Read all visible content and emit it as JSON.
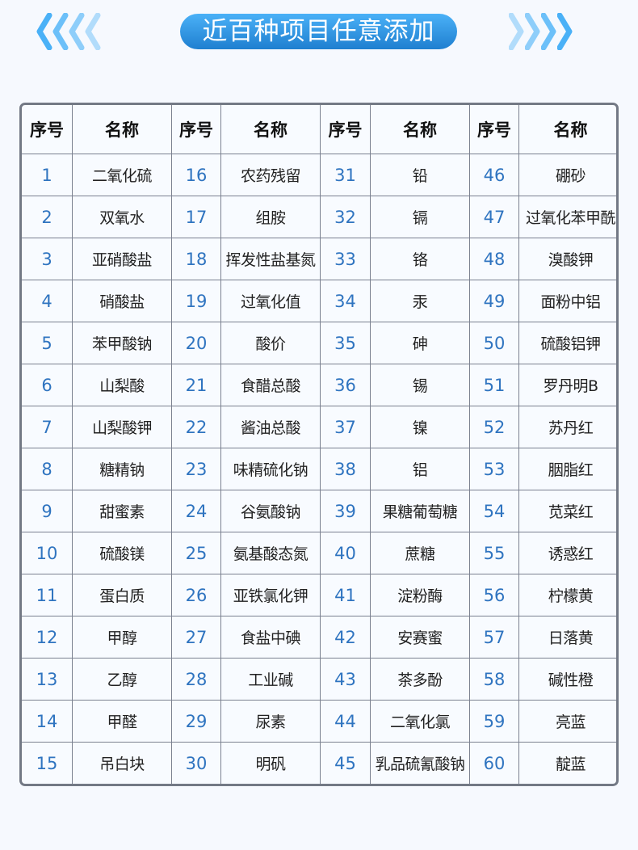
{
  "banner": {
    "title": "近百种项目任意添加",
    "colors": {
      "gradient_top": "#4ab1f7",
      "gradient_bottom": "#1f7fd0",
      "chevron": "#4ab1f7"
    }
  },
  "table": {
    "headers": [
      "序号",
      "名称",
      "序号",
      "名称",
      "序号",
      "名称",
      "序号",
      "名称"
    ],
    "items": [
      {
        "no": "1",
        "name": "二氧化硫"
      },
      {
        "no": "2",
        "name": "双氧水"
      },
      {
        "no": "3",
        "name": "亚硝酸盐"
      },
      {
        "no": "4",
        "name": "硝酸盐"
      },
      {
        "no": "5",
        "name": "苯甲酸钠"
      },
      {
        "no": "6",
        "name": "山梨酸"
      },
      {
        "no": "7",
        "name": "山梨酸钾"
      },
      {
        "no": "8",
        "name": "糖精钠"
      },
      {
        "no": "9",
        "name": "甜蜜素"
      },
      {
        "no": "10",
        "name": "硫酸镁"
      },
      {
        "no": "11",
        "name": "蛋白质"
      },
      {
        "no": "12",
        "name": "甲醇"
      },
      {
        "no": "13",
        "name": "乙醇"
      },
      {
        "no": "14",
        "name": "甲醛"
      },
      {
        "no": "15",
        "name": "吊白块"
      },
      {
        "no": "16",
        "name": "农药残留"
      },
      {
        "no": "17",
        "name": "组胺"
      },
      {
        "no": "18",
        "name": "挥发性盐基氮"
      },
      {
        "no": "19",
        "name": "过氧化值"
      },
      {
        "no": "20",
        "name": "酸价"
      },
      {
        "no": "21",
        "name": "食醋总酸"
      },
      {
        "no": "22",
        "name": "酱油总酸"
      },
      {
        "no": "23",
        "name": "味精硫化钠"
      },
      {
        "no": "24",
        "name": "谷氨酸钠"
      },
      {
        "no": "25",
        "name": "氨基酸态氮"
      },
      {
        "no": "26",
        "name": "亚铁氯化钾"
      },
      {
        "no": "27",
        "name": "食盐中碘"
      },
      {
        "no": "28",
        "name": "工业碱"
      },
      {
        "no": "29",
        "name": "尿素"
      },
      {
        "no": "30",
        "name": "明矾"
      },
      {
        "no": "31",
        "name": "铅"
      },
      {
        "no": "32",
        "name": "镉"
      },
      {
        "no": "33",
        "name": "铬"
      },
      {
        "no": "34",
        "name": "汞"
      },
      {
        "no": "35",
        "name": "砷"
      },
      {
        "no": "36",
        "name": "锡"
      },
      {
        "no": "37",
        "name": "镍"
      },
      {
        "no": "38",
        "name": "铝"
      },
      {
        "no": "39",
        "name": "果糖葡萄糖"
      },
      {
        "no": "40",
        "name": "蔗糖"
      },
      {
        "no": "41",
        "name": "淀粉酶"
      },
      {
        "no": "42",
        "name": "安赛蜜"
      },
      {
        "no": "43",
        "name": "茶多酚"
      },
      {
        "no": "44",
        "name": "二氧化氯"
      },
      {
        "no": "45",
        "name": "乳品硫氰酸钠"
      },
      {
        "no": "46",
        "name": "硼砂"
      },
      {
        "no": "47",
        "name": "过氧化苯甲酰"
      },
      {
        "no": "48",
        "name": "溴酸钾"
      },
      {
        "no": "49",
        "name": "面粉中铝"
      },
      {
        "no": "50",
        "name": "硫酸铝钾"
      },
      {
        "no": "51",
        "name": "罗丹明B"
      },
      {
        "no": "52",
        "name": "苏丹红"
      },
      {
        "no": "53",
        "name": "胭脂红"
      },
      {
        "no": "54",
        "name": "苋菜红"
      },
      {
        "no": "55",
        "name": "诱惑红"
      },
      {
        "no": "56",
        "name": "柠檬黄"
      },
      {
        "no": "57",
        "name": "日落黄"
      },
      {
        "no": "58",
        "name": "碱性橙"
      },
      {
        "no": "59",
        "name": "亮蓝"
      },
      {
        "no": "60",
        "name": "靛蓝"
      }
    ]
  }
}
